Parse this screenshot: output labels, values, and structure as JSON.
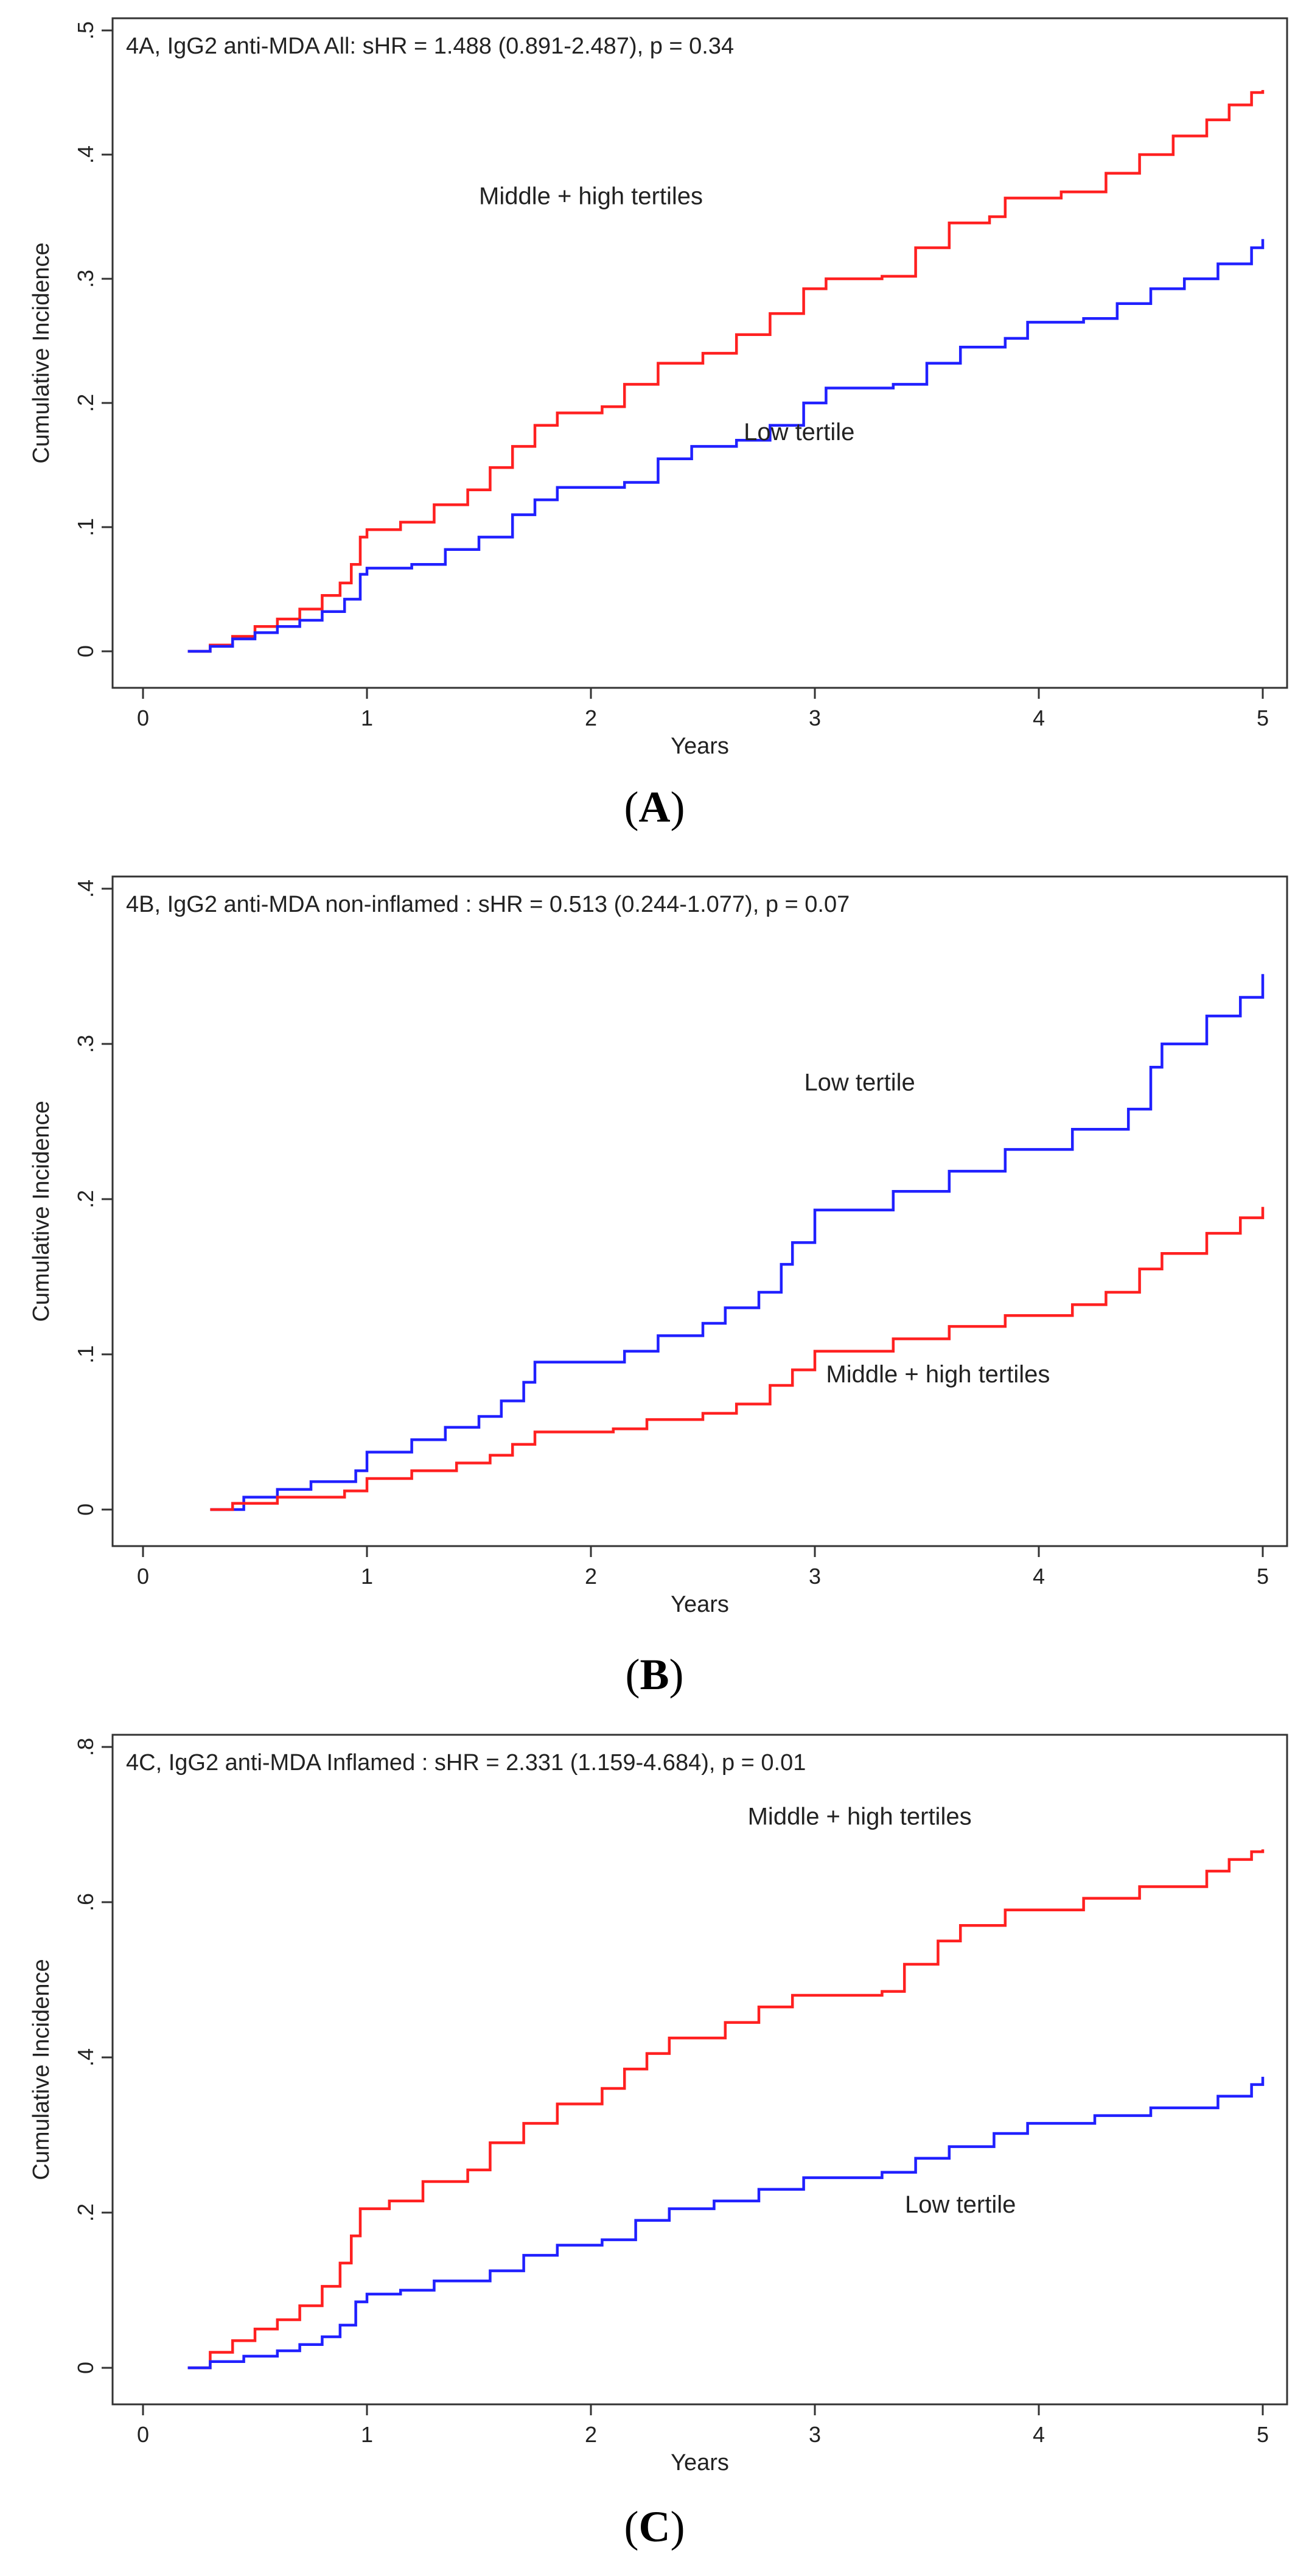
{
  "chart_data": [
    {
      "type": "line",
      "caption": "A",
      "annotation": "4A, IgG2 anti-MDA All: sHR = 1.488 (0.891-2.487), p = 0.34",
      "xlabel": "Years",
      "ylabel": "Cumulative Incidence",
      "xlim": [
        0,
        5
      ],
      "ylim": [
        0,
        0.5
      ],
      "xticks": [
        0,
        1,
        2,
        3,
        4,
        5
      ],
      "xtick_labels": [
        "0",
        "1",
        "2",
        "3",
        "4",
        "5"
      ],
      "yticks": [
        0,
        0.1,
        0.2,
        0.3,
        0.4,
        0.5
      ],
      "ytick_labels": [
        "0",
        ".1",
        ".2",
        ".3",
        ".4",
        ".5"
      ],
      "series": [
        {
          "label": "Middle + high tertiles",
          "color": "#ff2020",
          "label_pos": [
            2.0,
            0.36
          ],
          "points": [
            [
              0.2,
              0
            ],
            [
              0.3,
              0.005
            ],
            [
              0.4,
              0.012
            ],
            [
              0.5,
              0.02
            ],
            [
              0.6,
              0.026
            ],
            [
              0.7,
              0.034
            ],
            [
              0.8,
              0.045
            ],
            [
              0.88,
              0.055
            ],
            [
              0.93,
              0.07
            ],
            [
              0.97,
              0.092
            ],
            [
              1.0,
              0.098
            ],
            [
              1.15,
              0.104
            ],
            [
              1.3,
              0.118
            ],
            [
              1.45,
              0.13
            ],
            [
              1.55,
              0.148
            ],
            [
              1.65,
              0.165
            ],
            [
              1.75,
              0.182
            ],
            [
              1.85,
              0.192
            ],
            [
              2.05,
              0.197
            ],
            [
              2.15,
              0.215
            ],
            [
              2.3,
              0.232
            ],
            [
              2.5,
              0.24
            ],
            [
              2.65,
              0.255
            ],
            [
              2.8,
              0.272
            ],
            [
              2.95,
              0.292
            ],
            [
              3.05,
              0.3
            ],
            [
              3.3,
              0.302
            ],
            [
              3.45,
              0.325
            ],
            [
              3.6,
              0.345
            ],
            [
              3.78,
              0.35
            ],
            [
              3.85,
              0.365
            ],
            [
              4.1,
              0.37
            ],
            [
              4.3,
              0.385
            ],
            [
              4.45,
              0.4
            ],
            [
              4.6,
              0.415
            ],
            [
              4.75,
              0.428
            ],
            [
              4.85,
              0.44
            ],
            [
              4.95,
              0.45
            ],
            [
              5.0,
              0.452
            ]
          ]
        },
        {
          "label": "Low tertile",
          "color": "#2020ff",
          "label_pos": [
            2.93,
            0.17
          ],
          "points": [
            [
              0.2,
              0
            ],
            [
              0.3,
              0.004
            ],
            [
              0.4,
              0.01
            ],
            [
              0.5,
              0.015
            ],
            [
              0.6,
              0.02
            ],
            [
              0.7,
              0.025
            ],
            [
              0.8,
              0.032
            ],
            [
              0.9,
              0.042
            ],
            [
              0.97,
              0.062
            ],
            [
              1.0,
              0.067
            ],
            [
              1.2,
              0.07
            ],
            [
              1.35,
              0.082
            ],
            [
              1.5,
              0.092
            ],
            [
              1.65,
              0.11
            ],
            [
              1.75,
              0.122
            ],
            [
              1.85,
              0.132
            ],
            [
              2.15,
              0.136
            ],
            [
              2.3,
              0.155
            ],
            [
              2.45,
              0.165
            ],
            [
              2.65,
              0.17
            ],
            [
              2.8,
              0.182
            ],
            [
              2.95,
              0.2
            ],
            [
              3.05,
              0.212
            ],
            [
              3.35,
              0.215
            ],
            [
              3.5,
              0.232
            ],
            [
              3.65,
              0.245
            ],
            [
              3.85,
              0.252
            ],
            [
              3.95,
              0.265
            ],
            [
              4.2,
              0.268
            ],
            [
              4.35,
              0.28
            ],
            [
              4.5,
              0.292
            ],
            [
              4.65,
              0.3
            ],
            [
              4.8,
              0.312
            ],
            [
              4.95,
              0.325
            ],
            [
              5.0,
              0.332
            ]
          ]
        }
      ]
    },
    {
      "type": "line",
      "caption": "B",
      "annotation": "4B, IgG2 anti-MDA non-inflamed : sHR = 0.513 (0.244-1.077), p = 0.07",
      "xlabel": "Years",
      "ylabel": "Cumulative Incidence",
      "xlim": [
        0,
        5
      ],
      "ylim": [
        0,
        0.4
      ],
      "xticks": [
        0,
        1,
        2,
        3,
        4,
        5
      ],
      "xtick_labels": [
        "0",
        "1",
        "2",
        "3",
        "4",
        "5"
      ],
      "yticks": [
        0,
        0.1,
        0.2,
        0.3,
        0.4
      ],
      "ytick_labels": [
        "0",
        ".1",
        ".2",
        ".3",
        ".4"
      ],
      "series": [
        {
          "label": "Low tertile",
          "color": "#2020ff",
          "label_pos": [
            3.2,
            0.27
          ],
          "points": [
            [
              0.3,
              0
            ],
            [
              0.45,
              0.008
            ],
            [
              0.6,
              0.013
            ],
            [
              0.75,
              0.018
            ],
            [
              0.95,
              0.025
            ],
            [
              1.0,
              0.037
            ],
            [
              1.2,
              0.045
            ],
            [
              1.35,
              0.053
            ],
            [
              1.5,
              0.06
            ],
            [
              1.6,
              0.07
            ],
            [
              1.7,
              0.082
            ],
            [
              1.75,
              0.095
            ],
            [
              2.15,
              0.102
            ],
            [
              2.3,
              0.112
            ],
            [
              2.5,
              0.12
            ],
            [
              2.6,
              0.13
            ],
            [
              2.75,
              0.14
            ],
            [
              2.85,
              0.158
            ],
            [
              2.9,
              0.172
            ],
            [
              3.0,
              0.193
            ],
            [
              3.35,
              0.205
            ],
            [
              3.6,
              0.218
            ],
            [
              3.85,
              0.232
            ],
            [
              4.15,
              0.245
            ],
            [
              4.4,
              0.258
            ],
            [
              4.5,
              0.285
            ],
            [
              4.55,
              0.3
            ],
            [
              4.75,
              0.318
            ],
            [
              4.9,
              0.33
            ],
            [
              5.0,
              0.345
            ]
          ]
        },
        {
          "label": "Middle + high tertiles",
          "color": "#ff2020",
          "label_pos": [
            3.55,
            0.082
          ],
          "points": [
            [
              0.3,
              0
            ],
            [
              0.4,
              0.004
            ],
            [
              0.6,
              0.008
            ],
            [
              0.9,
              0.012
            ],
            [
              1.0,
              0.02
            ],
            [
              1.2,
              0.025
            ],
            [
              1.4,
              0.03
            ],
            [
              1.55,
              0.035
            ],
            [
              1.65,
              0.042
            ],
            [
              1.75,
              0.05
            ],
            [
              2.1,
              0.052
            ],
            [
              2.25,
              0.058
            ],
            [
              2.5,
              0.062
            ],
            [
              2.65,
              0.068
            ],
            [
              2.8,
              0.08
            ],
            [
              2.9,
              0.09
            ],
            [
              3.0,
              0.102
            ],
            [
              3.35,
              0.11
            ],
            [
              3.6,
              0.118
            ],
            [
              3.85,
              0.125
            ],
            [
              4.15,
              0.132
            ],
            [
              4.3,
              0.14
            ],
            [
              4.45,
              0.155
            ],
            [
              4.55,
              0.165
            ],
            [
              4.75,
              0.178
            ],
            [
              4.9,
              0.188
            ],
            [
              5.0,
              0.195
            ]
          ]
        }
      ]
    },
    {
      "type": "line",
      "caption": "C",
      "annotation": "4C, IgG2 anti-MDA Inflamed : sHR = 2.331 (1.159-4.684), p = 0.01",
      "xlabel": "Years",
      "ylabel": "Cumulative Incidence",
      "xlim": [
        0,
        5
      ],
      "ylim": [
        0,
        0.8
      ],
      "xticks": [
        0,
        1,
        2,
        3,
        4,
        5
      ],
      "xtick_labels": [
        "0",
        "1",
        "2",
        "3",
        "4",
        "5"
      ],
      "yticks": [
        0,
        0.2,
        0.4,
        0.6,
        0.8
      ],
      "ytick_labels": [
        "0",
        ".2",
        ".4",
        ".6",
        ".8"
      ],
      "series": [
        {
          "label": "Middle  + high tertiles",
          "color": "#ff2020",
          "label_pos": [
            3.2,
            0.7
          ],
          "points": [
            [
              0.2,
              0
            ],
            [
              0.3,
              0.02
            ],
            [
              0.4,
              0.035
            ],
            [
              0.5,
              0.05
            ],
            [
              0.6,
              0.062
            ],
            [
              0.7,
              0.08
            ],
            [
              0.8,
              0.105
            ],
            [
              0.88,
              0.135
            ],
            [
              0.93,
              0.17
            ],
            [
              0.97,
              0.205
            ],
            [
              1.1,
              0.215
            ],
            [
              1.25,
              0.24
            ],
            [
              1.45,
              0.255
            ],
            [
              1.55,
              0.29
            ],
            [
              1.7,
              0.315
            ],
            [
              1.85,
              0.34
            ],
            [
              2.05,
              0.36
            ],
            [
              2.15,
              0.385
            ],
            [
              2.25,
              0.405
            ],
            [
              2.35,
              0.425
            ],
            [
              2.6,
              0.445
            ],
            [
              2.75,
              0.465
            ],
            [
              2.9,
              0.48
            ],
            [
              3.3,
              0.485
            ],
            [
              3.4,
              0.52
            ],
            [
              3.55,
              0.55
            ],
            [
              3.65,
              0.57
            ],
            [
              3.85,
              0.59
            ],
            [
              4.2,
              0.605
            ],
            [
              4.45,
              0.62
            ],
            [
              4.75,
              0.64
            ],
            [
              4.85,
              0.655
            ],
            [
              4.95,
              0.665
            ],
            [
              5.0,
              0.668
            ]
          ]
        },
        {
          "label": "Low tertile",
          "color": "#2020ff",
          "label_pos": [
            3.65,
            0.2
          ],
          "points": [
            [
              0.2,
              0
            ],
            [
              0.3,
              0.008
            ],
            [
              0.45,
              0.015
            ],
            [
              0.6,
              0.022
            ],
            [
              0.7,
              0.03
            ],
            [
              0.8,
              0.04
            ],
            [
              0.88,
              0.055
            ],
            [
              0.95,
              0.085
            ],
            [
              1.0,
              0.095
            ],
            [
              1.15,
              0.1
            ],
            [
              1.3,
              0.112
            ],
            [
              1.55,
              0.125
            ],
            [
              1.7,
              0.145
            ],
            [
              1.85,
              0.158
            ],
            [
              2.05,
              0.165
            ],
            [
              2.2,
              0.19
            ],
            [
              2.35,
              0.205
            ],
            [
              2.55,
              0.215
            ],
            [
              2.75,
              0.23
            ],
            [
              2.95,
              0.245
            ],
            [
              3.3,
              0.252
            ],
            [
              3.45,
              0.27
            ],
            [
              3.6,
              0.285
            ],
            [
              3.8,
              0.302
            ],
            [
              3.95,
              0.315
            ],
            [
              4.25,
              0.325
            ],
            [
              4.5,
              0.335
            ],
            [
              4.8,
              0.35
            ],
            [
              4.95,
              0.365
            ],
            [
              5.0,
              0.375
            ]
          ]
        }
      ]
    }
  ]
}
